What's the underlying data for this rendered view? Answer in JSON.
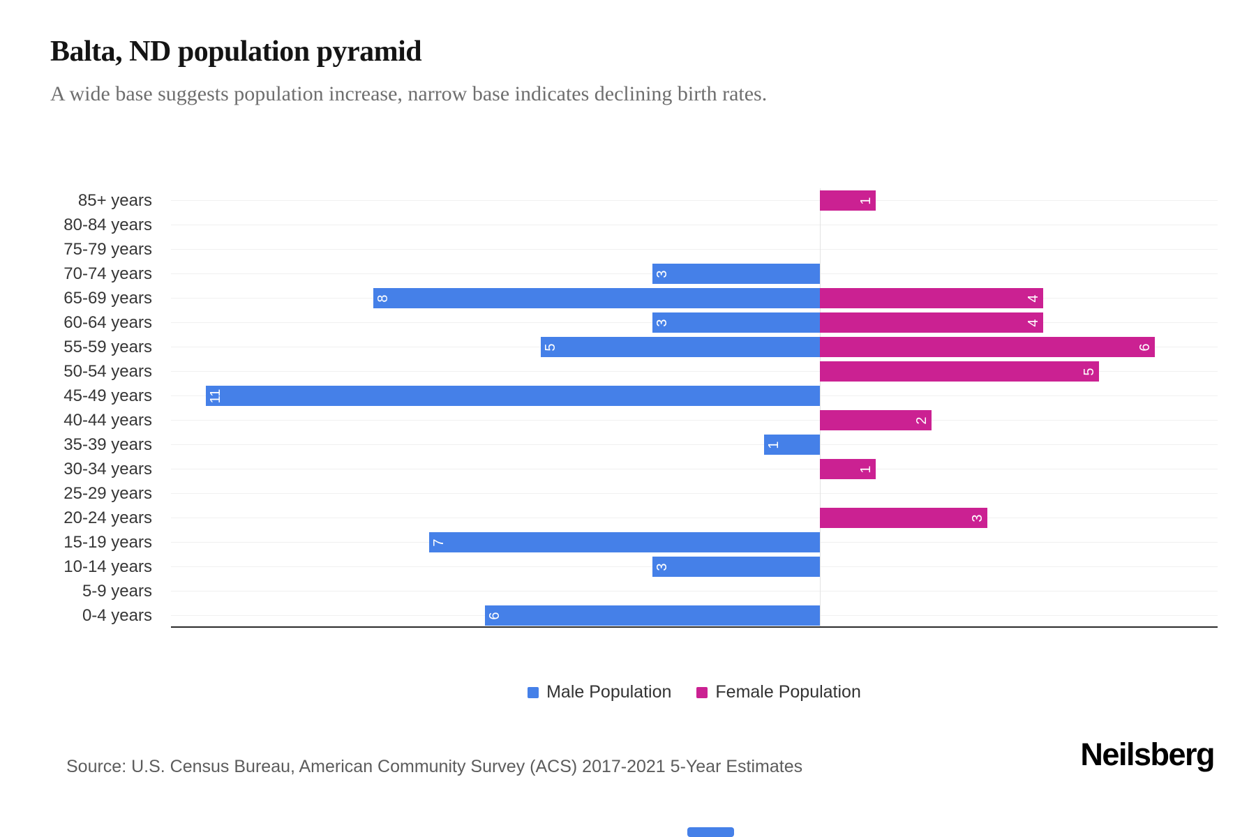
{
  "title": "Balta, ND population pyramid",
  "subtitle": "A wide base suggests population increase, narrow base indicates declining birth rates.",
  "source": "Source: U.S. Census Bureau, American Community Survey (ACS) 2017-2021 5-Year Estimates",
  "brand": "Neilsberg",
  "colors": {
    "male": "#4580E8",
    "female": "#CB2192",
    "axis": "#2a2a2a",
    "gridline": "#f0f0f0",
    "scrollbar": "#4580E8"
  },
  "legend_items": [
    {
      "label": "Male Population",
      "color": "#4580E8"
    },
    {
      "label": "Female Population",
      "color": "#CB2192"
    }
  ],
  "chart_data": {
    "type": "bar",
    "variant": "population-pyramid",
    "title": "Balta, ND population pyramid",
    "categories": [
      "85+ years",
      "80-84 years",
      "75-79 years",
      "70-74 years",
      "65-69 years",
      "60-64 years",
      "55-59 years",
      "50-54 years",
      "45-49 years",
      "40-44 years",
      "35-39 years",
      "30-34 years",
      "25-29 years",
      "20-24 years",
      "15-19 years",
      "10-14 years",
      "5-9 years",
      "0-4 years"
    ],
    "series": [
      {
        "name": "Male Population",
        "color": "#4580E8",
        "direction": "left",
        "values": [
          0,
          0,
          0,
          3,
          8,
          3,
          5,
          0,
          11,
          0,
          1,
          0,
          0,
          0,
          7,
          3,
          0,
          6
        ]
      },
      {
        "name": "Female Population",
        "color": "#CB2192",
        "direction": "right",
        "values": [
          1,
          0,
          0,
          0,
          4,
          4,
          6,
          5,
          0,
          2,
          0,
          1,
          0,
          3,
          0,
          0,
          0,
          0
        ]
      }
    ],
    "value_labels": "white digits rotated 90deg CCW at outer end of each bar",
    "x_axis": {
      "ticks_visible": false,
      "left_max": 11.6,
      "right_max": 7.1,
      "zero_position_pct": 62
    },
    "grid": {
      "horizontal_category_lines": true,
      "zero_line": true
    },
    "legend_position": "bottom-center"
  }
}
